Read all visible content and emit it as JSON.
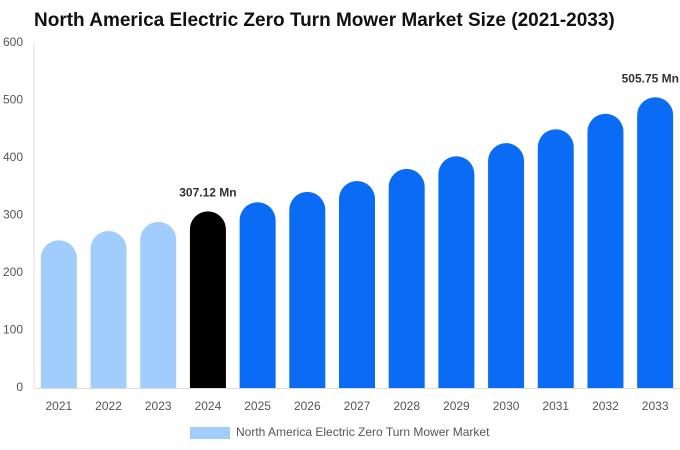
{
  "chart_data": {
    "type": "bar",
    "title": "North America Electric Zero Turn Mower Market Size (2021-2033)",
    "categories": [
      "2021",
      "2022",
      "2023",
      "2024",
      "2025",
      "2026",
      "2027",
      "2028",
      "2029",
      "2030",
      "2031",
      "2032",
      "2033"
    ],
    "series": [
      {
        "name": "North America Electric Zero Turn Mower Market",
        "color": "#a0cdfc",
        "values": [
          257,
          273,
          289,
          307.12,
          323,
          341,
          360,
          381,
          403,
          426,
          450,
          477,
          505.75
        ],
        "colors": [
          "#a0cdfc",
          "#a0cdfc",
          "#a0cdfc",
          "#000000",
          "#0a6cf5",
          "#0a6cf5",
          "#0a6cf5",
          "#0a6cf5",
          "#0a6cf5",
          "#0a6cf5",
          "#0a6cf5",
          "#0a6cf5",
          "#0a6cf5"
        ],
        "value_labels": [
          null,
          null,
          null,
          "307.12 Mn",
          null,
          null,
          null,
          null,
          null,
          null,
          null,
          null,
          "505.75 Mn"
        ]
      }
    ],
    "ylim": [
      0,
      600
    ],
    "yticks": [
      0,
      100,
      200,
      300,
      400,
      500,
      600
    ],
    "grid": false
  }
}
